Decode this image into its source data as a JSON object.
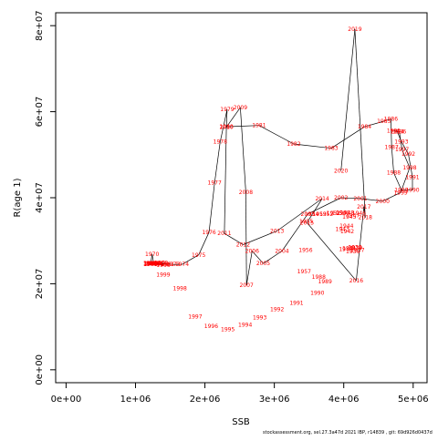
{
  "footer_text": "stockassessment.org, sel.27.3a47d  2021 IBP, r14839 , git: 69d926d0437d",
  "chart_data": {
    "type": "scatter",
    "connected": true,
    "xlabel": "SSB",
    "ylabel": "R(age 1)",
    "xlim": [
      -150000,
      5200000
    ],
    "ylim": [
      -3000000,
      83000000
    ],
    "xticks": [
      {
        "v": 0,
        "label": "0e+00"
      },
      {
        "v": 1000000,
        "label": "1e+06"
      },
      {
        "v": 2000000,
        "label": "2e+06"
      },
      {
        "v": 3000000,
        "label": "3e+06"
      },
      {
        "v": 4000000,
        "label": "4e+06"
      },
      {
        "v": 5000000,
        "label": "5e+06"
      }
    ],
    "yticks": [
      {
        "v": 0,
        "label": "0e+00"
      },
      {
        "v": 20000000,
        "label": "2e+07"
      },
      {
        "v": 40000000,
        "label": "4e+07"
      },
      {
        "v": 60000000,
        "label": "6e+07"
      },
      {
        "v": 80000000,
        "label": "8e+07"
      }
    ],
    "line_color": "#000000",
    "label_color": "#ff0000",
    "points": [
      {
        "year": "1958",
        "x": 1210000,
        "y": 24700000
      },
      {
        "year": "1959",
        "x": 1360000,
        "y": 24500000
      },
      {
        "year": "1960",
        "x": 1370000,
        "y": 24900000
      },
      {
        "year": "1961",
        "x": 1460000,
        "y": 24500000
      },
      {
        "year": "1962",
        "x": 1280000,
        "y": 24700000
      },
      {
        "year": "1963",
        "x": 1230000,
        "y": 24600000
      },
      {
        "year": "1964",
        "x": 1210000,
        "y": 24500000
      },
      {
        "year": "1965",
        "x": 1250000,
        "y": 24700000
      },
      {
        "year": "1966",
        "x": 1400000,
        "y": 24300000
      },
      {
        "year": "1967",
        "x": 1330000,
        "y": 24800000
      },
      {
        "year": "1968",
        "x": 1220000,
        "y": 24600000
      },
      {
        "year": "1969",
        "x": 1260000,
        "y": 24800000
      },
      {
        "year": "1970",
        "x": 1240000,
        "y": 26900000
      },
      {
        "year": "1971",
        "x": 1220000,
        "y": 24700000
      },
      {
        "year": "1972",
        "x": 1300000,
        "y": 24800000
      },
      {
        "year": "1973",
        "x": 1540000,
        "y": 24500000
      },
      {
        "year": "1974",
        "x": 1670000,
        "y": 24500000
      },
      {
        "year": "1975",
        "x": 1910000,
        "y": 26700000
      },
      {
        "year": "1976",
        "x": 2060000,
        "y": 32000000
      },
      {
        "year": "1977",
        "x": 2140000,
        "y": 43500000
      },
      {
        "year": "1978",
        "x": 2220000,
        "y": 53000000
      },
      {
        "year": "1979",
        "x": 2320000,
        "y": 60500000
      },
      {
        "year": "1980",
        "x": 2310000,
        "y": 56500000
      },
      {
        "year": "1981",
        "x": 2780000,
        "y": 56800000
      },
      {
        "year": "1982",
        "x": 3280000,
        "y": 52500000
      },
      {
        "year": "1983",
        "x": 3820000,
        "y": 51500000
      },
      {
        "year": "1984",
        "x": 4300000,
        "y": 56500000
      },
      {
        "year": "1985",
        "x": 4580000,
        "y": 57800000
      },
      {
        "year": "1986",
        "x": 4680000,
        "y": 58300000
      },
      {
        "year": "1987",
        "x": 4690000,
        "y": 51800000
      },
      {
        "year": "1988",
        "x": 4720000,
        "y": 45800000
      },
      {
        "year": "1989",
        "x": 4830000,
        "y": 41800000
      },
      {
        "year": "1990",
        "x": 4990000,
        "y": 41800000
      },
      {
        "year": "1991",
        "x": 4990000,
        "y": 44800000
      },
      {
        "year": "1992",
        "x": 4930000,
        "y": 50200000
      },
      {
        "year": "1993",
        "x": 4830000,
        "y": 53000000
      },
      {
        "year": "1994",
        "x": 4770000,
        "y": 55400000
      },
      {
        "year": "1995",
        "x": 4720000,
        "y": 55600000
      },
      {
        "year": "1996",
        "x": 4800000,
        "y": 55400000
      },
      {
        "year": "1997",
        "x": 4840000,
        "y": 51200000
      },
      {
        "year": "1998",
        "x": 4950000,
        "y": 47000000
      },
      {
        "year": "1999",
        "x": 4820000,
        "y": 41200000
      },
      {
        "year": "2000",
        "x": 4560000,
        "y": 39200000
      },
      {
        "year": "2001",
        "x": 4240000,
        "y": 39800000
      },
      {
        "year": "2002",
        "x": 3960000,
        "y": 40000000
      },
      {
        "year": "2003",
        "x": 3480000,
        "y": 36200000
      },
      {
        "year": "2004",
        "x": 3110000,
        "y": 27600000
      },
      {
        "year": "2005",
        "x": 2840000,
        "y": 24700000
      },
      {
        "year": "2006",
        "x": 2680000,
        "y": 27600000
      },
      {
        "year": "2007",
        "x": 2600000,
        "y": 19700000
      },
      {
        "year": "2008",
        "x": 2590000,
        "y": 41300000
      },
      {
        "year": "2009",
        "x": 2510000,
        "y": 61000000
      },
      {
        "year": "2010",
        "x": 2310000,
        "y": 56400000
      },
      {
        "year": "2011",
        "x": 2280000,
        "y": 31700000
      },
      {
        "year": "2012",
        "x": 2550000,
        "y": 29100000
      },
      {
        "year": "2013",
        "x": 3040000,
        "y": 32300000
      },
      {
        "year": "2014",
        "x": 3690000,
        "y": 39800000
      },
      {
        "year": "2015",
        "x": 3470000,
        "y": 34200000
      },
      {
        "year": "2016",
        "x": 4180000,
        "y": 20700000
      },
      {
        "year": "2017",
        "x": 4290000,
        "y": 37900000
      },
      {
        "year": "2018",
        "x": 4310000,
        "y": 35400000
      },
      {
        "year": "2019",
        "x": 4160000,
        "y": 79200000
      },
      {
        "year": "2020",
        "x": 3960000,
        "y": 46300000
      }
    ],
    "extra_labels": [
      {
        "year": "1988",
        "x": 3640000,
        "y": 21600000
      },
      {
        "year": "1989",
        "x": 3730000,
        "y": 20500000
      },
      {
        "year": "1990",
        "x": 3620000,
        "y": 17900000
      },
      {
        "year": "1991",
        "x": 3320000,
        "y": 15500000
      },
      {
        "year": "1992",
        "x": 3040000,
        "y": 14000000
      },
      {
        "year": "1993",
        "x": 2790000,
        "y": 12100000
      },
      {
        "year": "1994",
        "x": 2580000,
        "y": 10400000
      },
      {
        "year": "1995",
        "x": 2330000,
        "y": 9400000
      },
      {
        "year": "1996",
        "x": 2090000,
        "y": 10100000
      },
      {
        "year": "1997",
        "x": 1860000,
        "y": 12400000
      },
      {
        "year": "1998",
        "x": 1640000,
        "y": 18900000
      },
      {
        "year": "1999",
        "x": 1400000,
        "y": 22100000
      },
      {
        "year": "1957",
        "x": 3430000,
        "y": 22800000
      },
      {
        "year": "1956",
        "x": 3450000,
        "y": 27800000
      },
      {
        "year": "1955",
        "x": 3460000,
        "y": 34500000
      },
      {
        "year": "1954",
        "x": 3540000,
        "y": 36200000
      },
      {
        "year": "1953",
        "x": 3650000,
        "y": 36200000
      },
      {
        "year": "1952",
        "x": 3750000,
        "y": 36200000
      },
      {
        "year": "1951",
        "x": 3850000,
        "y": 36400000
      },
      {
        "year": "1950",
        "x": 3930000,
        "y": 36400000
      },
      {
        "year": "1949",
        "x": 3990000,
        "y": 36500000
      },
      {
        "year": "1948",
        "x": 4050000,
        "y": 36500000
      },
      {
        "year": "1947",
        "x": 4130000,
        "y": 35900000
      },
      {
        "year": "1946",
        "x": 4220000,
        "y": 36400000
      },
      {
        "year": "1945",
        "x": 4080000,
        "y": 35500000
      },
      {
        "year": "1944",
        "x": 4040000,
        "y": 33400000
      },
      {
        "year": "1943",
        "x": 3980000,
        "y": 32700000
      },
      {
        "year": "1942",
        "x": 4050000,
        "y": 32200000
      },
      {
        "year": "1941",
        "x": 4080000,
        "y": 28200000
      },
      {
        "year": "1940",
        "x": 4030000,
        "y": 28000000
      },
      {
        "year": "1939",
        "x": 4170000,
        "y": 28400000
      },
      {
        "year": "1938",
        "x": 4160000,
        "y": 28500000
      },
      {
        "year": "1937",
        "x": 4200000,
        "y": 27800000
      },
      {
        "year": "1936",
        "x": 4130000,
        "y": 27500000
      }
    ]
  }
}
